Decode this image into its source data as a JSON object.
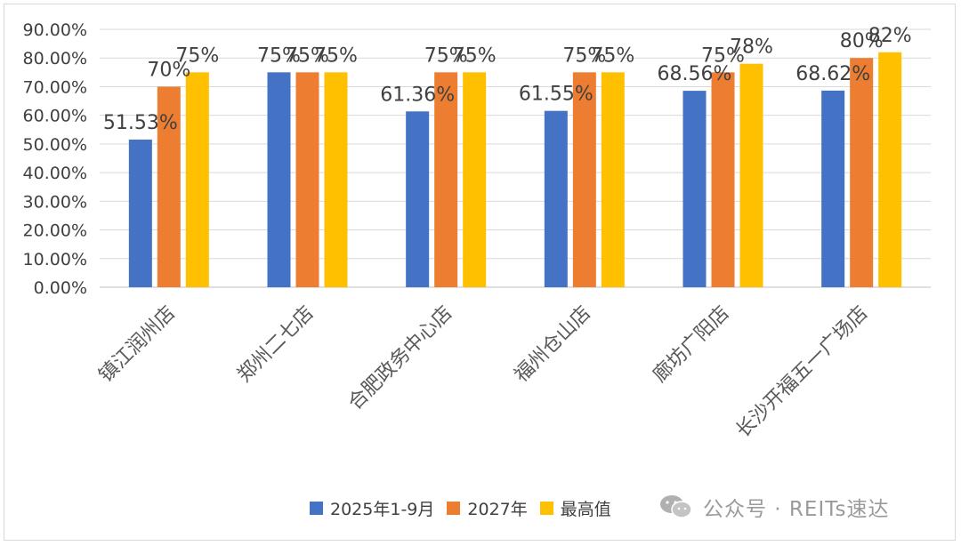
{
  "chart_data": {
    "type": "bar",
    "categories": [
      "镇江润州店",
      "郑州二七店",
      "合肥政务中心店",
      "福州仓山店",
      "廊坊广阳店",
      "长沙开福五一广场店"
    ],
    "series": [
      {
        "name": "2025年1-9月",
        "color": "#4472C4",
        "values": [
          51.53,
          75,
          61.36,
          61.55,
          68.56,
          68.62
        ],
        "labels": [
          "51.53%",
          "75%",
          "61.36%",
          "61.55%",
          "68.56%",
          "68.62%"
        ]
      },
      {
        "name": "2027年",
        "color": "#ED7D31",
        "values": [
          70,
          75,
          75,
          75,
          75,
          80
        ],
        "labels": [
          "70%",
          "75%",
          "75%",
          "75%",
          "75%",
          "80%"
        ]
      },
      {
        "name": "最高值",
        "color": "#FFC000",
        "values": [
          75,
          75,
          75,
          75,
          78,
          82
        ],
        "labels": [
          "75%",
          "75%",
          "75%",
          "75%",
          "78%",
          "82%"
        ]
      }
    ],
    "yticks": [
      "0.00%",
      "10.00%",
      "20.00%",
      "30.00%",
      "40.00%",
      "50.00%",
      "60.00%",
      "70.00%",
      "80.00%",
      "90.00%"
    ],
    "ylim": [
      0,
      90
    ],
    "grid": true,
    "legend": "bottom",
    "title": "",
    "xlabel": "",
    "ylabel": ""
  },
  "watermark": {
    "text": "公众号 · REITs速达",
    "icon": "wechat-icon"
  }
}
